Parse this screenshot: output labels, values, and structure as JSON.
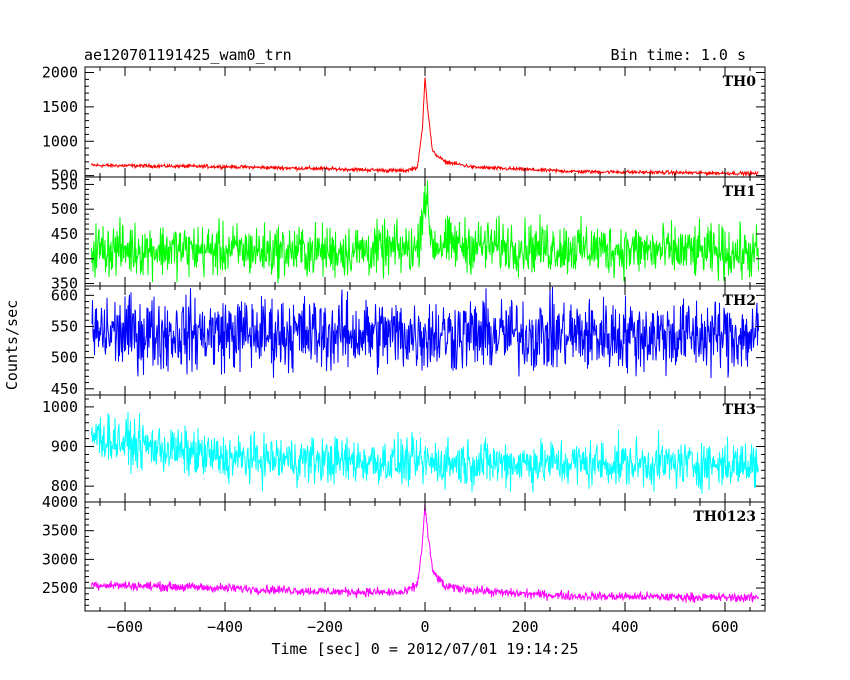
{
  "chart_data": {
    "type": "line",
    "title": "ae120701191425_wam0_trn",
    "bin_time_label": "Bin time: 1.0 s",
    "xlabel": "Time [sec] 0 = 2012/07/01 19:14:25",
    "ylabel": "Counts/sec",
    "xlim": [
      -680,
      680
    ],
    "x_ticks": [
      -600,
      -400,
      -200,
      0,
      200,
      400,
      600
    ],
    "x_tick_labels": [
      "−600",
      "−400",
      "−200",
      "0",
      "200",
      "400",
      "600"
    ],
    "data_range": [
      -667,
      667
    ],
    "panels": [
      {
        "name": "TH0",
        "color": "#ff0000",
        "ylim": [
          480,
          2080
        ],
        "yticks": [
          500,
          1000,
          1500,
          2000
        ],
        "trend": [
          [
            -667,
            650
          ],
          [
            -400,
            630
          ],
          [
            -200,
            600
          ],
          [
            -40,
            570
          ],
          [
            -15,
            620
          ],
          [
            -5,
            1200
          ],
          [
            0,
            1950
          ],
          [
            5,
            1500
          ],
          [
            15,
            850
          ],
          [
            40,
            700
          ],
          [
            100,
            620
          ],
          [
            300,
            560
          ],
          [
            667,
            530
          ]
        ],
        "noise": 20
      },
      {
        "name": "TH1",
        "color": "#00ff00",
        "ylim": [
          345,
          565
        ],
        "yticks": [
          350,
          400,
          450,
          500,
          550
        ],
        "trend": [
          [
            -667,
            420
          ],
          [
            -200,
            415
          ],
          [
            -15,
            420
          ],
          [
            -3,
            510
          ],
          [
            0,
            540
          ],
          [
            3,
            510
          ],
          [
            15,
            430
          ],
          [
            667,
            410
          ]
        ],
        "noise": 40
      },
      {
        "name": "TH2",
        "color": "#0000ff",
        "ylim": [
          440,
          615
        ],
        "yticks": [
          450,
          500,
          550,
          600
        ],
        "trend": [
          [
            -667,
            540
          ],
          [
            667,
            535
          ]
        ],
        "noise": 45
      },
      {
        "name": "TH3",
        "color": "#00ffff",
        "ylim": [
          760,
          1030
        ],
        "yticks": [
          800,
          900,
          1000
        ],
        "trend": [
          [
            -667,
            930
          ],
          [
            -600,
            910
          ],
          [
            -400,
            870
          ],
          [
            -200,
            865
          ],
          [
            0,
            860
          ],
          [
            667,
            855
          ]
        ],
        "noise": 45
      },
      {
        "name": "TH0123",
        "color": "#ff00ff",
        "ylim": [
          2100,
          4000
        ],
        "yticks": [
          2500,
          3000,
          3500,
          4000
        ],
        "trend": [
          [
            -667,
            2560
          ],
          [
            -400,
            2500
          ],
          [
            -200,
            2440
          ],
          [
            -40,
            2420
          ],
          [
            -15,
            2560
          ],
          [
            -5,
            3300
          ],
          [
            0,
            3950
          ],
          [
            5,
            3500
          ],
          [
            15,
            2800
          ],
          [
            40,
            2520
          ],
          [
            150,
            2420
          ],
          [
            300,
            2360
          ],
          [
            667,
            2330
          ]
        ],
        "noise": 60
      }
    ]
  }
}
